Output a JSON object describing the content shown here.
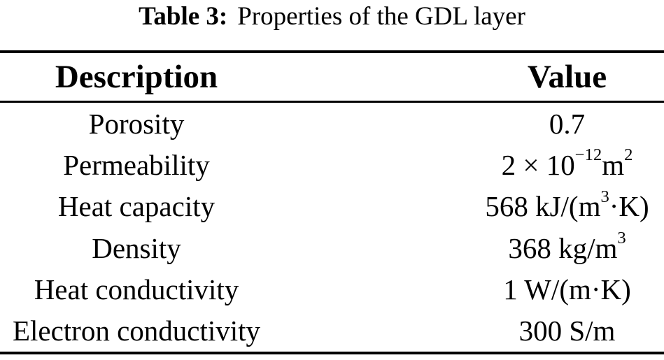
{
  "caption": {
    "label": "Table 3:",
    "text": "Properties of the GDL layer"
  },
  "table": {
    "columns": [
      {
        "key": "description",
        "label": "Description"
      },
      {
        "key": "value",
        "label": "Value"
      }
    ],
    "rows": [
      {
        "description": "Porosity",
        "value": "0.7"
      },
      {
        "description": "Permeability",
        "value": "2 × 10⁻¹² m²"
      },
      {
        "description": "Heat capacity",
        "value": "568 kJ/(m³·K)"
      },
      {
        "description": "Density",
        "value": "368 kg/m³"
      },
      {
        "description": "Heat conductivity",
        "value": "1 W/(m·K)"
      },
      {
        "description": "Electron conductivity",
        "value": "300 S/m"
      }
    ]
  },
  "colors": {
    "background": "#ffffff",
    "text": "#000000",
    "rule": "#000000"
  }
}
